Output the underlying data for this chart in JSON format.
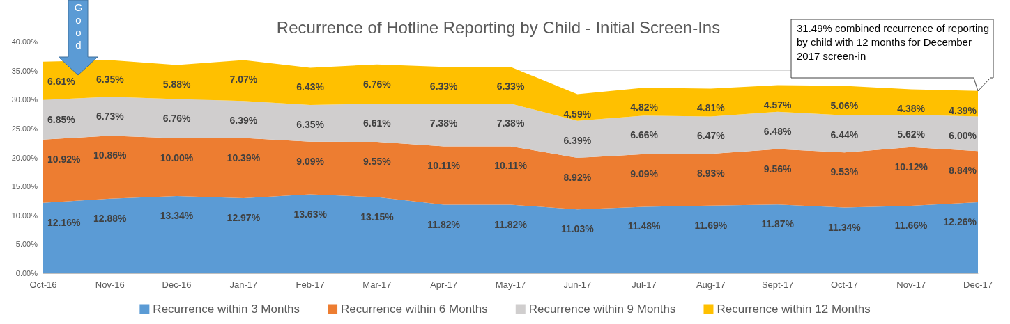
{
  "chart_data": {
    "type": "area",
    "title": "Recurrence of Hotline Reporting by Child - Initial Screen-Ins",
    "categories": [
      "Oct-16",
      "Nov-16",
      "Dec-16",
      "Jan-17",
      "Feb-17",
      "Mar-17",
      "Apr-17",
      "May-17",
      "Jun-17",
      "Jul-17",
      "Aug-17",
      "Sept-17",
      "Oct-17",
      "Nov-17",
      "Dec-17"
    ],
    "series": [
      {
        "name": "Recurrence within 3 Months",
        "color": "#5b9bd5",
        "values": [
          12.16,
          12.88,
          13.34,
          12.97,
          13.63,
          13.15,
          11.82,
          11.82,
          11.03,
          11.48,
          11.69,
          11.87,
          11.34,
          11.66,
          12.26
        ],
        "value_labels": [
          "12.16%",
          "12.88%",
          "13.34%",
          "12.97%",
          "13.63%",
          "13.15%",
          "11.82%",
          "11.82%",
          "11.03%",
          "11.48%",
          "11.69%",
          "11.87%",
          "11.34%",
          "11.66%",
          "12.26%"
        ]
      },
      {
        "name": "Recurrence within 6 Months",
        "color": "#ed7d31",
        "values": [
          10.92,
          10.86,
          10.0,
          10.39,
          9.09,
          9.55,
          10.11,
          10.11,
          8.92,
          9.09,
          8.93,
          9.56,
          9.53,
          10.12,
          8.84
        ],
        "value_labels": [
          "10.92%",
          "10.86%",
          "10.00%",
          "10.39%",
          "9.09%",
          "9.55%",
          "10.11%",
          "10.11%",
          "8.92%",
          "9.09%",
          "8.93%",
          "9.56%",
          "9.53%",
          "10.12%",
          "8.84%"
        ]
      },
      {
        "name": "Recurrence within 9 Months",
        "color": "#d0cece",
        "values": [
          6.85,
          6.73,
          6.76,
          6.39,
          6.35,
          6.61,
          7.38,
          7.38,
          6.39,
          6.66,
          6.47,
          6.48,
          6.44,
          5.62,
          6.0
        ],
        "value_labels": [
          "6.85%",
          "6.73%",
          "6.76%",
          "6.39%",
          "6.35%",
          "6.61%",
          "7.38%",
          "7.38%",
          "6.39%",
          "6.66%",
          "6.47%",
          "6.48%",
          "6.44%",
          "5.62%",
          "6.00%"
        ]
      },
      {
        "name": "Recurrence within 12 Months",
        "color": "#ffc000",
        "values": [
          6.61,
          6.35,
          5.88,
          7.07,
          6.43,
          6.76,
          6.33,
          6.33,
          4.59,
          4.82,
          4.81,
          4.57,
          5.06,
          4.38,
          4.39
        ],
        "value_labels": [
          "6.61%",
          "6.35%",
          "5.88%",
          "7.07%",
          "6.43%",
          "6.76%",
          "6.33%",
          "6.33%",
          "4.59%",
          "4.82%",
          "4.81%",
          "4.57%",
          "5.06%",
          "4.38%",
          "4.39%"
        ]
      }
    ],
    "stacked": true,
    "ylim": [
      0,
      40
    ],
    "yticks": [
      {
        "value": 0,
        "label": "0.00%"
      },
      {
        "value": 5,
        "label": "5.00%"
      },
      {
        "value": 10,
        "label": "10.00%"
      },
      {
        "value": 15,
        "label": "15.00%"
      },
      {
        "value": 20,
        "label": "20.00%"
      },
      {
        "value": 25,
        "label": "25.00%"
      },
      {
        "value": 30,
        "label": "30.00%"
      },
      {
        "value": 35,
        "label": "35.00%"
      },
      {
        "value": 40,
        "label": "40.00%"
      }
    ],
    "grid": "y",
    "legend": "bottom",
    "annotations": [
      "Good",
      {
        "text": "31.49% combined recurrence of reporting by child with 12 months for December 2017 screen-in",
        "x": "Dec-17",
        "y": 31.49
      }
    ]
  }
}
